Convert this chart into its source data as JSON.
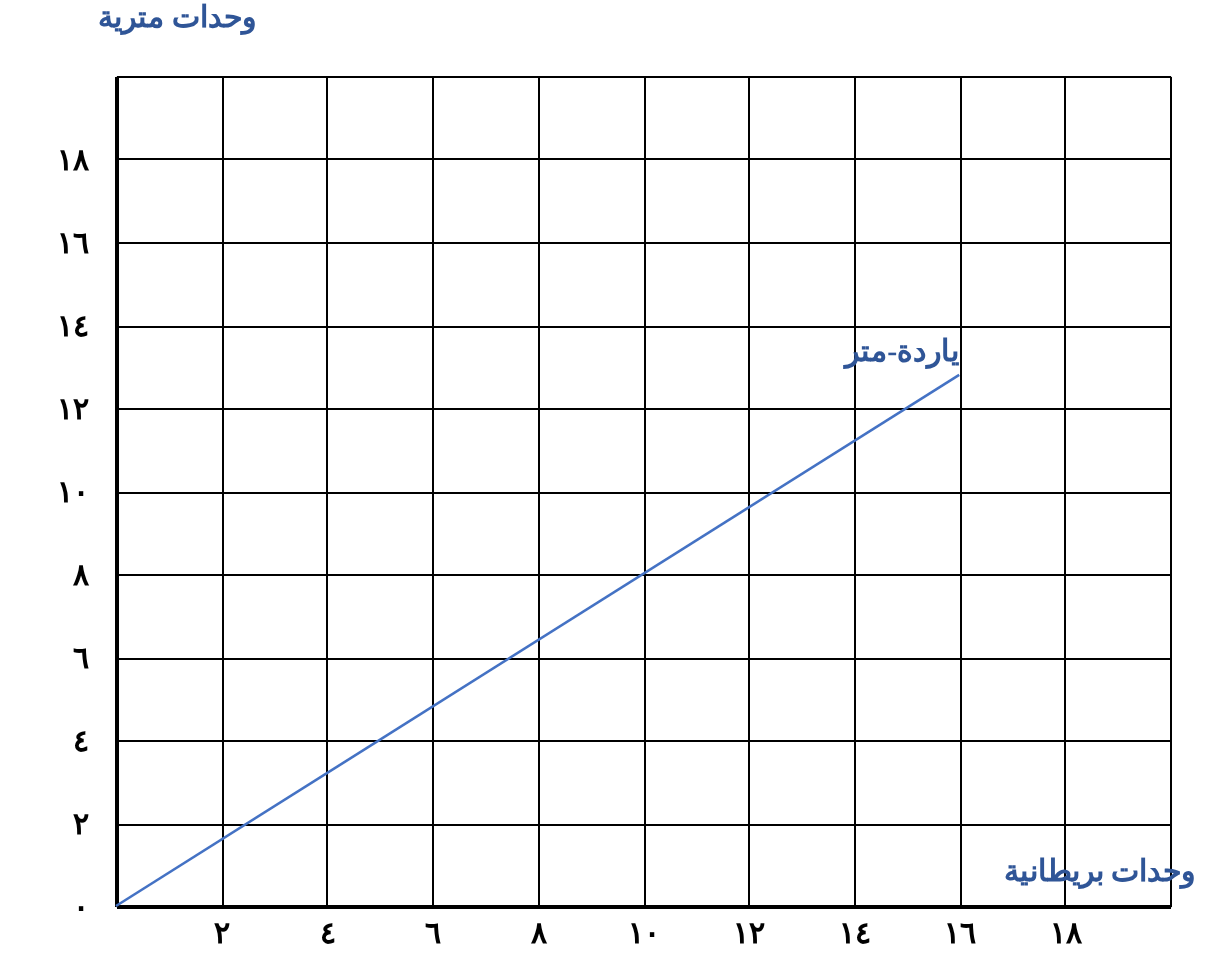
{
  "chart_data": {
    "type": "line",
    "xlabel": "وحدات بريطانية",
    "ylabel": "وحدات مترية",
    "x": [
      0,
      16
    ],
    "series": [
      {
        "color": "#4472c4",
        "values": [
          0,
          12.8
        ]
      }
    ],
    "xlim": [
      0,
      20
    ],
    "ylim": [
      0,
      20
    ],
    "xticks": [
      {
        "value": 0,
        "label": null
      },
      {
        "value": 2,
        "label": "٢"
      },
      {
        "value": 4,
        "label": "٤"
      },
      {
        "value": 6,
        "label": "٦"
      },
      {
        "value": 8,
        "label": "٨"
      },
      {
        "value": 10,
        "label": "١٠"
      },
      {
        "value": 12,
        "label": "١٢"
      },
      {
        "value": 14,
        "label": "١٤"
      },
      {
        "value": 16,
        "label": "١٦"
      },
      {
        "value": 18,
        "label": "١٨"
      },
      {
        "value": 20,
        "label": null
      }
    ],
    "yticks": [
      {
        "value": 0,
        "label": "٠"
      },
      {
        "value": 2,
        "label": "٢"
      },
      {
        "value": 4,
        "label": "٤"
      },
      {
        "value": 6,
        "label": "٦"
      },
      {
        "value": 8,
        "label": "٨"
      },
      {
        "value": 10,
        "label": "١٠"
      },
      {
        "value": 12,
        "label": "١٢"
      },
      {
        "value": 14,
        "label": "١٤"
      },
      {
        "value": 16,
        "label": "١٦"
      },
      {
        "value": 18,
        "label": "١٨"
      },
      {
        "value": 20,
        "label": null
      }
    ],
    "annotations": [
      {
        "text": "ياردة-متر",
        "x": 16,
        "y": 12.8
      }
    ],
    "grid": true,
    "marker": "none",
    "line_style": "solid"
  }
}
